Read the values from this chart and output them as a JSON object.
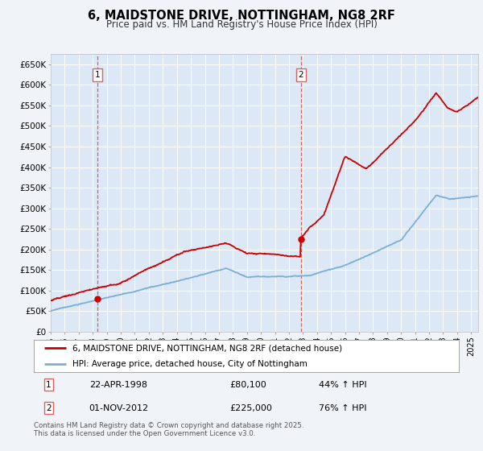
{
  "title": "6, MAIDSTONE DRIVE, NOTTINGHAM, NG8 2RF",
  "subtitle": "Price paid vs. HM Land Registry's House Price Index (HPI)",
  "background_color": "#f0f4f8",
  "plot_bg_color": "#dce8f5",
  "ylim": [
    0,
    675000
  ],
  "yticks": [
    0,
    50000,
    100000,
    150000,
    200000,
    250000,
    300000,
    350000,
    400000,
    450000,
    500000,
    550000,
    600000,
    650000
  ],
  "ytick_labels": [
    "£0",
    "£50K",
    "£100K",
    "£150K",
    "£200K",
    "£250K",
    "£300K",
    "£350K",
    "£400K",
    "£450K",
    "£500K",
    "£550K",
    "£600K",
    "£650K"
  ],
  "purchase1_date": 1998.31,
  "purchase1_price": 80100,
  "purchase2_date": 2012.84,
  "purchase2_price": 225000,
  "legend_line1": "6, MAIDSTONE DRIVE, NOTTINGHAM, NG8 2RF (detached house)",
  "legend_line2": "HPI: Average price, detached house, City of Nottingham",
  "ann1_date": "22-APR-1998",
  "ann1_price": "£80,100",
  "ann1_hpi": "44% ↑ HPI",
  "ann2_date": "01-NOV-2012",
  "ann2_price": "£225,000",
  "ann2_hpi": "76% ↑ HPI",
  "footer": "Contains HM Land Registry data © Crown copyright and database right 2025.\nThis data is licensed under the Open Government Licence v3.0.",
  "red_color": "#cc0000",
  "blue_color": "#7ab0d4",
  "vline_color": "#e06060"
}
